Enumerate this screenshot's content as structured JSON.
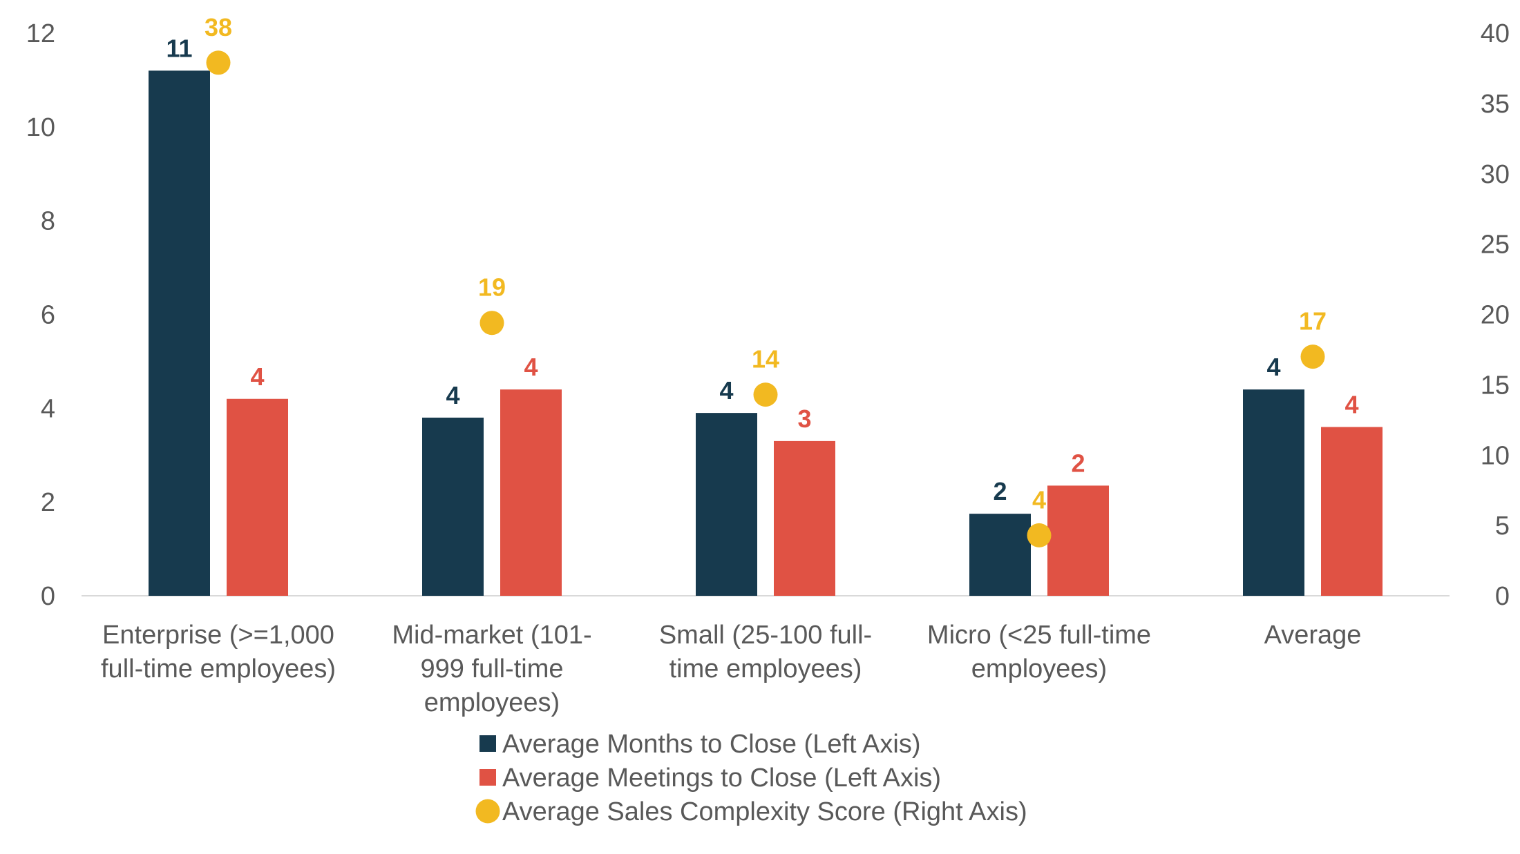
{
  "chart_data": {
    "type": "bar",
    "categories": [
      [
        "Enterprise (>=1,000",
        "full-time employees)"
      ],
      [
        "Mid-market (101-",
        "999 full-time",
        "employees)"
      ],
      [
        "Small (25-100 full-",
        "time employees)"
      ],
      [
        "Micro (<25 full-time",
        "employees)"
      ],
      [
        "Average"
      ]
    ],
    "left_axis": {
      "ylim": [
        0,
        12
      ],
      "ticks": [
        "0",
        "2",
        "4",
        "6",
        "8",
        "10",
        "12"
      ]
    },
    "right_axis": {
      "ylim": [
        0,
        40
      ],
      "ticks": [
        "0",
        "5",
        "10",
        "15",
        "20",
        "25",
        "30",
        "35",
        "40"
      ]
    },
    "series": [
      {
        "name": "Average Months to Close (Left Axis)",
        "kind": "bar",
        "axis": "left",
        "color": "#173A4E",
        "values": [
          11.2,
          3.8,
          3.9,
          1.75,
          4.4
        ],
        "labels": [
          "11",
          "4",
          "4",
          "2",
          "4"
        ]
      },
      {
        "name": "Average Meetings to Close (Left Axis)",
        "kind": "bar",
        "axis": "left",
        "color": "#E05244",
        "values": [
          4.2,
          4.4,
          3.3,
          2.35,
          3.6
        ],
        "labels": [
          "4",
          "4",
          "3",
          "2",
          "4"
        ]
      },
      {
        "name": "Average Sales Complexity Score (Right Axis)",
        "kind": "marker",
        "axis": "right",
        "color": "#F2B921",
        "values": [
          37.9,
          19.4,
          14.3,
          4.3,
          17.0
        ],
        "labels": [
          "38",
          "19",
          "14",
          "4",
          "17"
        ]
      }
    ],
    "grid": false,
    "legend_position": "bottom"
  }
}
